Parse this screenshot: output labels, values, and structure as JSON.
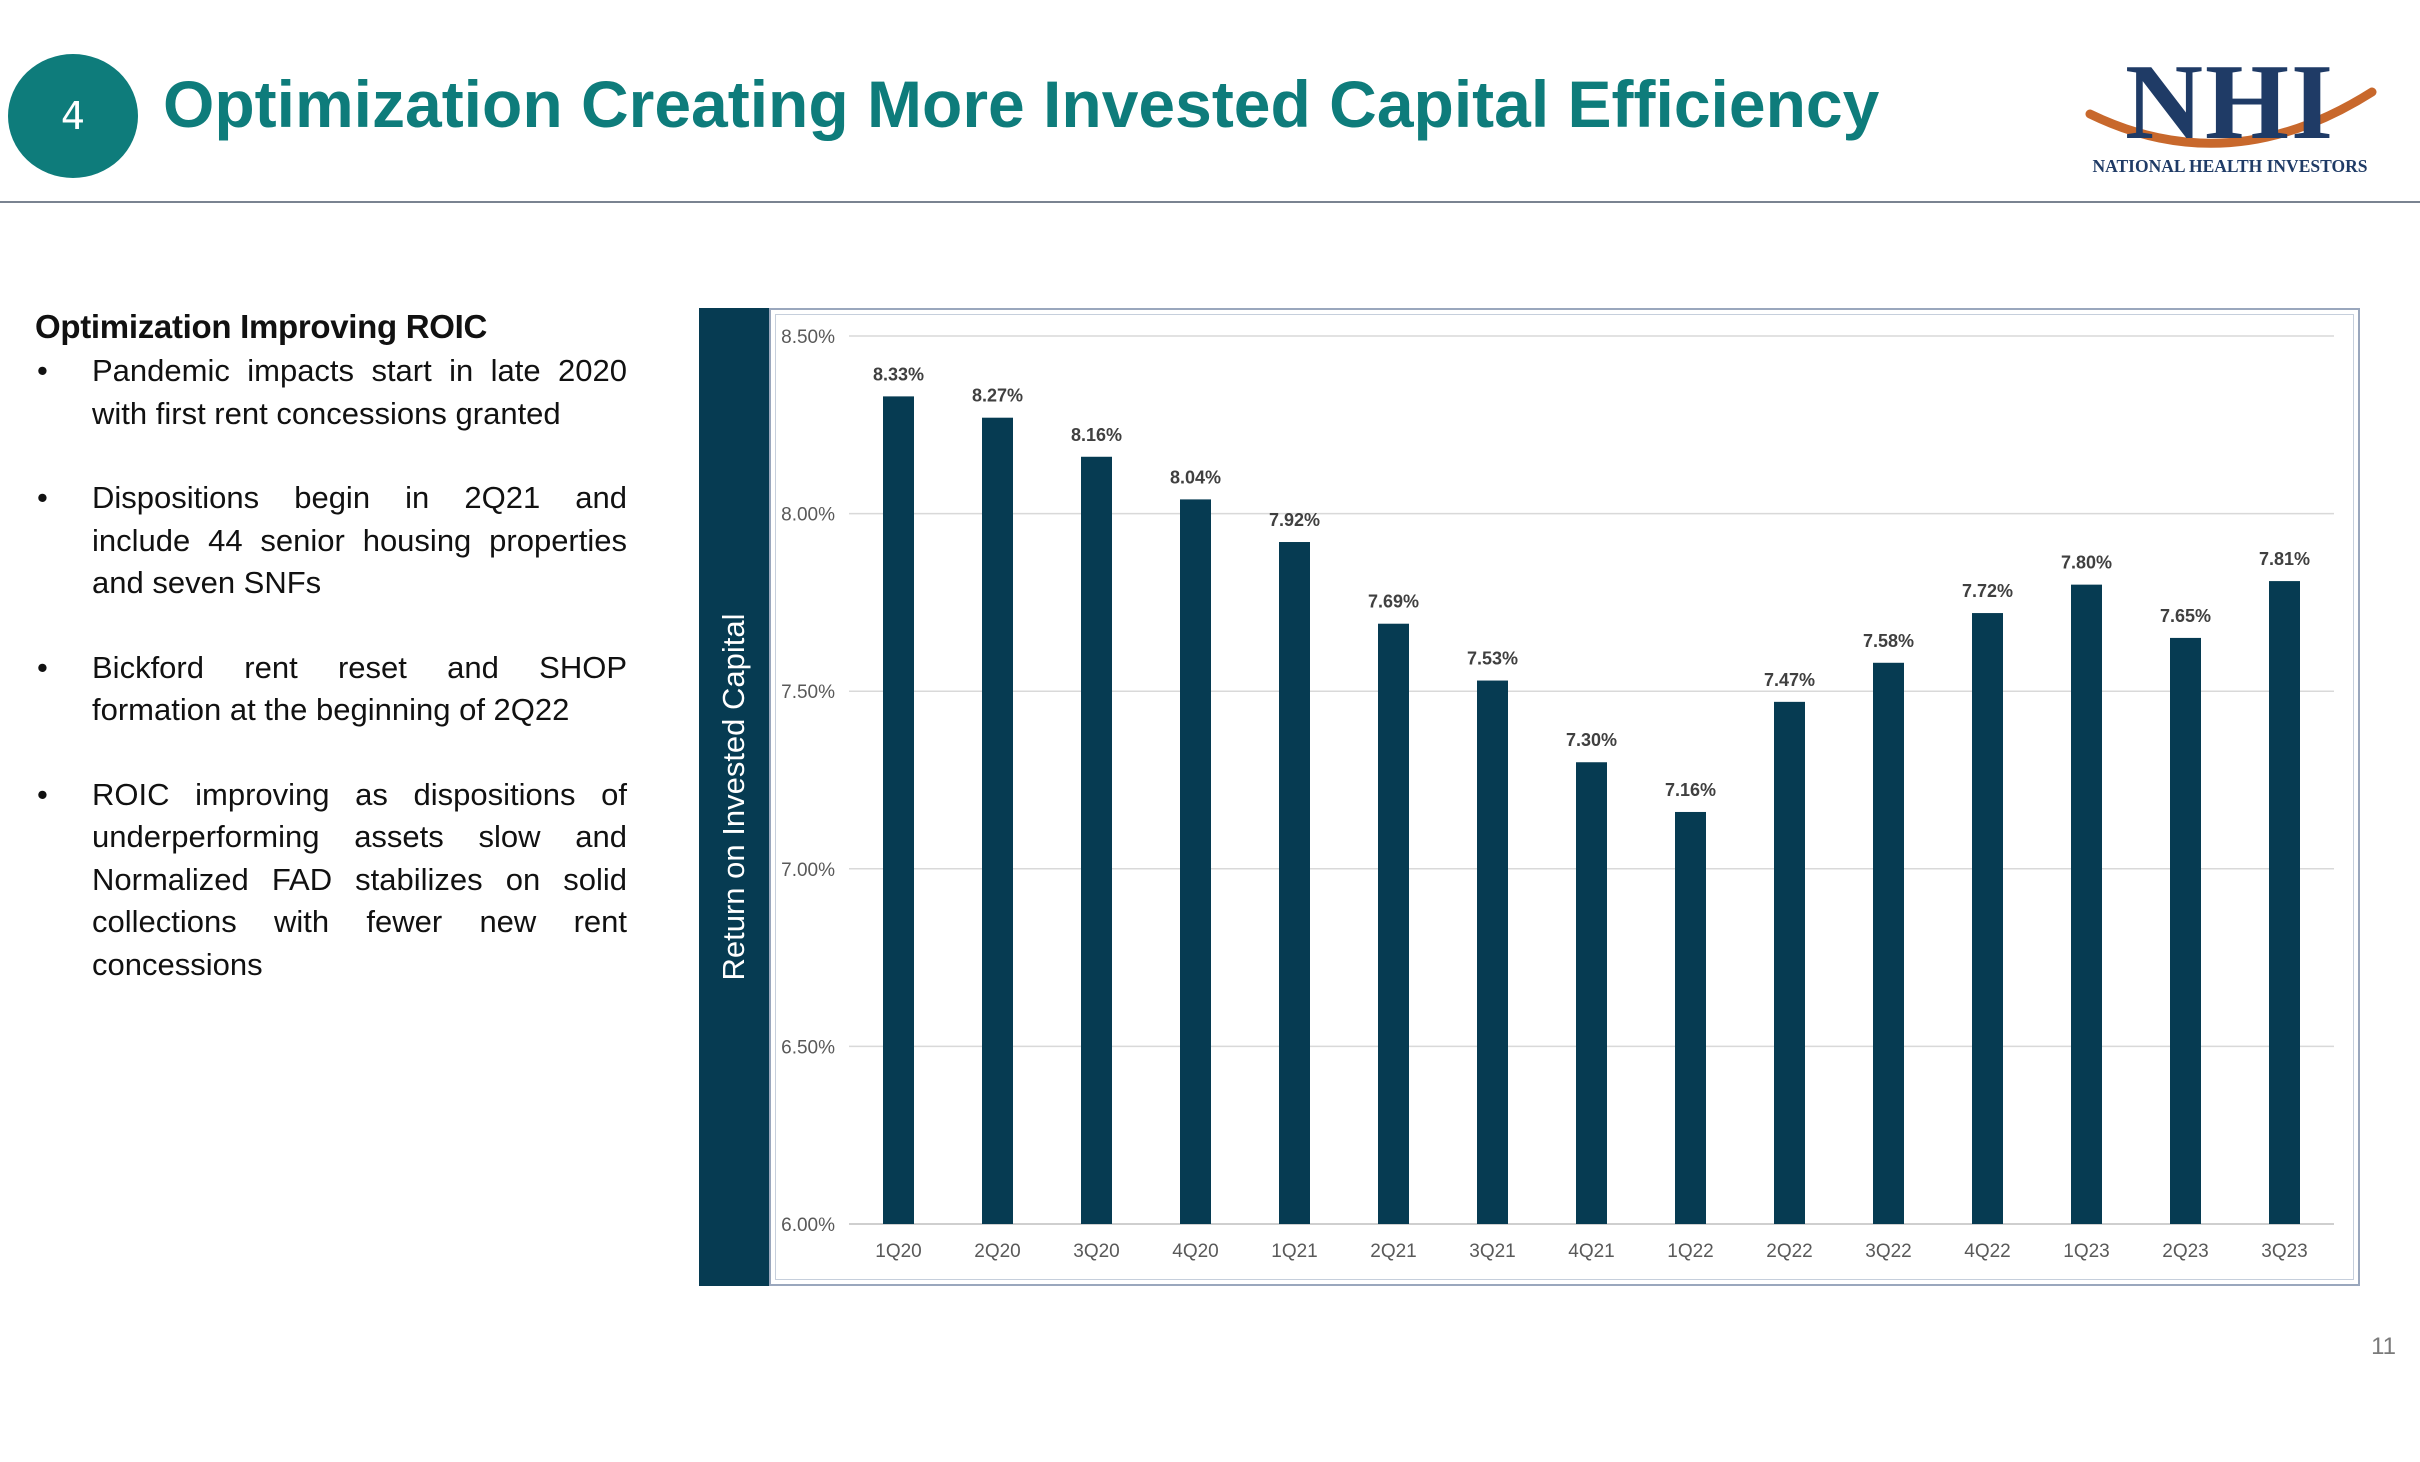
{
  "slide": {
    "section_number": "4",
    "title": "Optimization Creating More Invested Capital Efficiency",
    "page_number": "11"
  },
  "logo": {
    "mark": "NHI",
    "tagline": "NATIONAL HEALTH INVESTORS"
  },
  "left_panel": {
    "heading": "Optimization Improving ROIC",
    "bullet_symbol": "•",
    "bullets": [
      "Pandemic impacts start in late 2020 with first rent concessions granted",
      "Dispositions begin in 2Q21 and include 44 senior housing properties and seven SNFs",
      "Bickford rent reset and SHOP formation at the beginning of 2Q22",
      "ROIC improving as dispositions of underperforming assets slow and Normalized FAD stabilizes on solid collections with fewer new rent concessions"
    ]
  },
  "colors": {
    "bar": "#063b52",
    "accent": "#0e7c7b",
    "gridline": "#d9d9d9"
  },
  "chart_data": {
    "type": "bar",
    "title": "",
    "xlabel": "",
    "ylabel": "Return on Invested Capital",
    "categories": [
      "1Q20",
      "2Q20",
      "3Q20",
      "4Q20",
      "1Q21",
      "2Q21",
      "3Q21",
      "4Q21",
      "1Q22",
      "2Q22",
      "3Q22",
      "4Q22",
      "1Q23",
      "2Q23",
      "3Q23"
    ],
    "values": [
      8.33,
      8.27,
      8.16,
      8.04,
      7.92,
      7.69,
      7.53,
      7.3,
      7.16,
      7.47,
      7.58,
      7.72,
      7.8,
      7.65,
      7.81
    ],
    "data_labels": [
      "8.33%",
      "8.27%",
      "8.16%",
      "8.04%",
      "7.92%",
      "7.69%",
      "7.53%",
      "7.30%",
      "7.16%",
      "7.47%",
      "7.58%",
      "7.72%",
      "7.80%",
      "7.65%",
      "7.81%"
    ],
    "ylim": [
      6.0,
      8.5
    ],
    "yticks": [
      6.0,
      6.5,
      7.0,
      7.5,
      8.0,
      8.5
    ],
    "ytick_labels": [
      "6.00%",
      "6.50%",
      "7.00%",
      "7.50%",
      "8.00%",
      "8.50%"
    ],
    "grid": true,
    "legend": "none"
  }
}
